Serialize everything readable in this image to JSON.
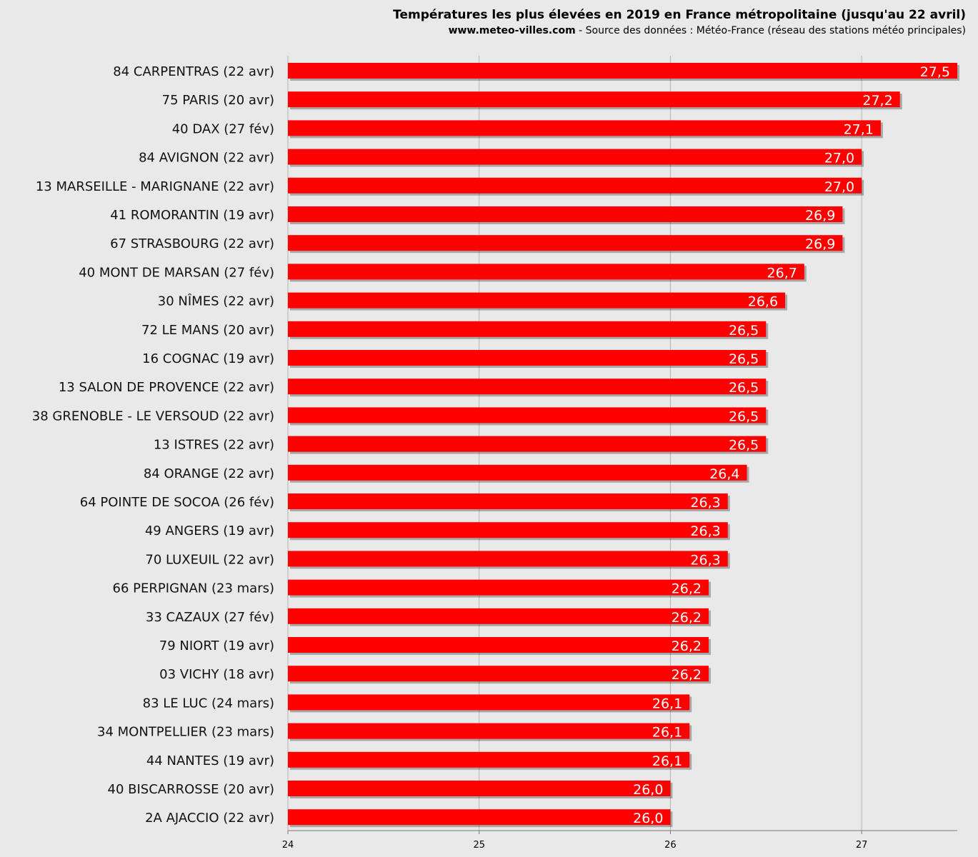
{
  "header": {
    "title": "Températures les plus élevées en 2019 en France métropolitaine (jusqu'au 22 avril)",
    "source_site": "www.meteo-villes.com",
    "source_text": " - Source des données : Météo-France (réseau des stations météo principales)"
  },
  "chart_data": {
    "type": "bar",
    "orientation": "horizontal",
    "title": "Températures les plus élevées en 2019 en France métropolitaine (jusqu'au 22 avril)",
    "categories": [
      "84 CARPENTRAS (22 avr)",
      "75 PARIS (20 avr)",
      "40 DAX (27 fév)",
      "84 AVIGNON (22 avr)",
      "13 MARSEILLE - MARIGNANE (22 avr)",
      "41 ROMORANTIN (19 avr)",
      "67 STRASBOURG (22 avr)",
      "40 MONT DE MARSAN (27 fév)",
      "30 NÎMES (22 avr)",
      "72 LE MANS (20 avr)",
      "16 COGNAC (19 avr)",
      "13 SALON DE PROVENCE (22 avr)",
      "38 GRENOBLE - LE VERSOUD (22 avr)",
      "13 ISTRES (22 avr)",
      "84 ORANGE (22 avr)",
      "64 POINTE DE SOCOA (26 fév)",
      "49 ANGERS (19 avr)",
      "70 LUXEUIL (22 avr)",
      "66 PERPIGNAN (23 mars)",
      "33 CAZAUX (27 fév)",
      "79 NIORT (19 avr)",
      "03 VICHY (18 avr)",
      "83 LE LUC (24 mars)",
      "34 MONTPELLIER (23 mars)",
      "44 NANTES (19 avr)",
      "40 BISCARROSSE (20 avr)",
      "2A AJACCIO (22 avr)"
    ],
    "values": [
      27.5,
      27.2,
      27.1,
      27.0,
      27.0,
      26.9,
      26.9,
      26.7,
      26.6,
      26.5,
      26.5,
      26.5,
      26.5,
      26.5,
      26.4,
      26.3,
      26.3,
      26.3,
      26.2,
      26.2,
      26.2,
      26.2,
      26.1,
      26.1,
      26.1,
      26.0,
      26.0
    ],
    "value_labels": [
      "27,5",
      "27,2",
      "27,1",
      "27,0",
      "27,0",
      "26,9",
      "26,9",
      "26,7",
      "26,6",
      "26,5",
      "26,5",
      "26,5",
      "26,5",
      "26,5",
      "26,4",
      "26,3",
      "26,3",
      "26,3",
      "26,2",
      "26,2",
      "26,2",
      "26,2",
      "26,1",
      "26,1",
      "26,1",
      "26,0",
      "26,0"
    ],
    "xlim": [
      24,
      27.5
    ],
    "ticks": [
      24,
      25,
      26,
      27
    ],
    "tick_labels": [
      "24",
      "25",
      "26",
      "27"
    ],
    "grid": true,
    "bar_color": "#ff0000",
    "xlabel": "",
    "ylabel": ""
  }
}
